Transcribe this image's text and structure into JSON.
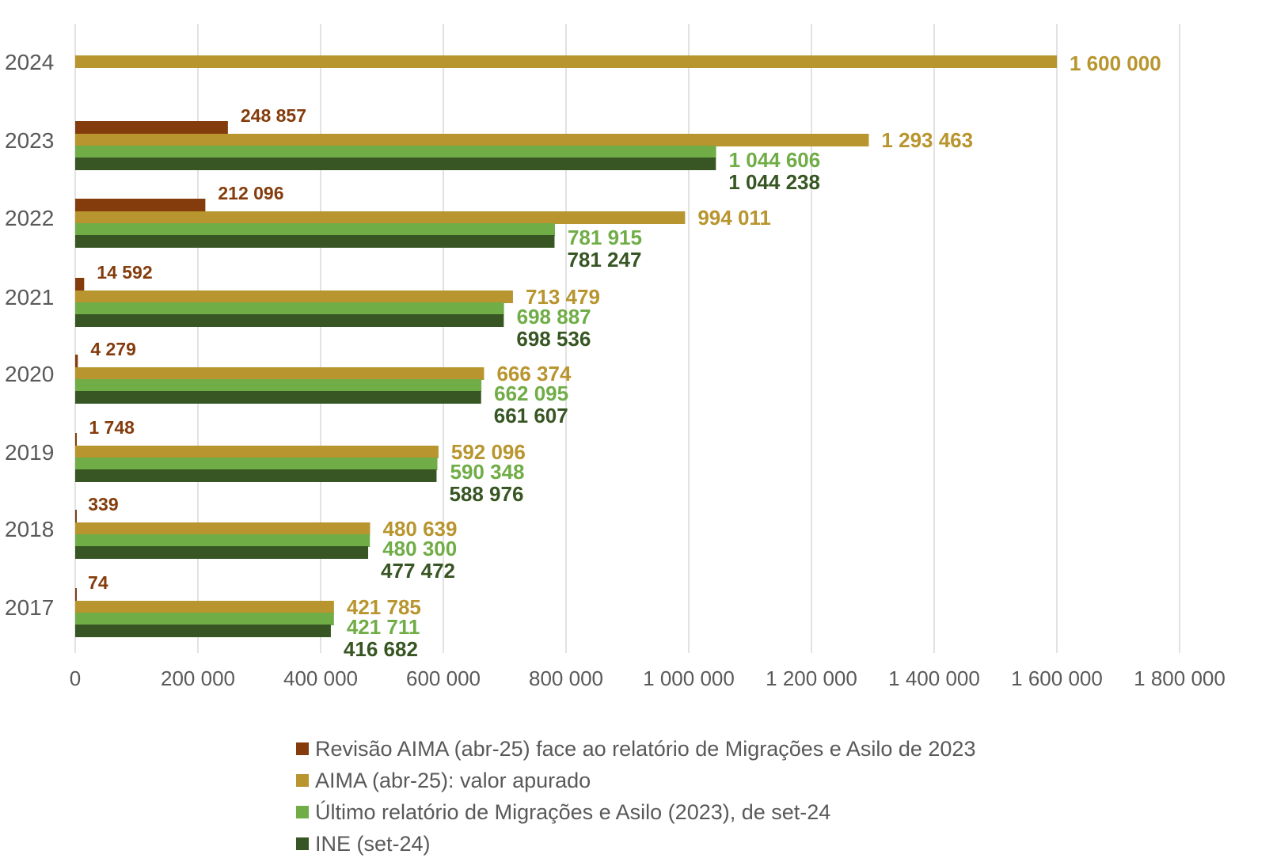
{
  "chart_data": {
    "type": "bar",
    "orientation": "horizontal",
    "title": "",
    "xlabel": "",
    "ylabel": "",
    "xlim": [
      0,
      1800000
    ],
    "x_ticks": [
      0,
      200000,
      400000,
      600000,
      800000,
      1000000,
      1200000,
      1400000,
      1600000,
      1800000
    ],
    "x_tick_labels": [
      "0",
      "200 000",
      "400 000",
      "600 000",
      "800 000",
      "1 000 000",
      "1 200 000",
      "1 400 000",
      "1 600 000",
      "1 800 000"
    ],
    "grid": true,
    "legend_position": "bottom",
    "categories": [
      "2024",
      "2023",
      "2022",
      "2021",
      "2020",
      "2019",
      "2018",
      "2017"
    ],
    "series": [
      {
        "name": "Revisão AIMA (abr-25) face ao relatório de Migrações e Asilo de 2023",
        "color": "#843C0C",
        "label_color": "#843C0C",
        "values": [
          null,
          248857,
          212096,
          14592,
          4279,
          1748,
          339,
          74
        ],
        "labels": [
          "",
          "248 857",
          "212 096",
          "14 592",
          "4 279",
          "1 748",
          "339",
          "74"
        ]
      },
      {
        "name": "AIMA (abr-25): valor apurado",
        "color": "#B8952E",
        "label_color": "#B8952E",
        "values": [
          1600000,
          1293463,
          994011,
          713479,
          666374,
          592096,
          480639,
          421785
        ],
        "labels": [
          "1 600 000",
          "1 293 463",
          "994 011",
          "713 479",
          "666 374",
          "592 096",
          "480 639",
          "421 785"
        ]
      },
      {
        "name": "Último relatório de Migrações e Asilo (2023), de set-24",
        "color": "#70AD47",
        "label_color": "#70AD47",
        "values": [
          null,
          1044606,
          781915,
          698887,
          662095,
          590348,
          480300,
          421711
        ],
        "labels": [
          "",
          "1 044 606",
          "781 915",
          "698 887",
          "662 095",
          "590 348",
          "480 300",
          "421 711"
        ]
      },
      {
        "name": "INE (set-24)",
        "color": "#375623",
        "label_color": "#375623",
        "values": [
          null,
          1044238,
          781247,
          698536,
          661607,
          588976,
          477472,
          416682
        ],
        "labels": [
          "",
          "1 044 238",
          "781 247",
          "698 536",
          "661 607",
          "588 976",
          "477 472",
          "416 682"
        ]
      }
    ]
  }
}
